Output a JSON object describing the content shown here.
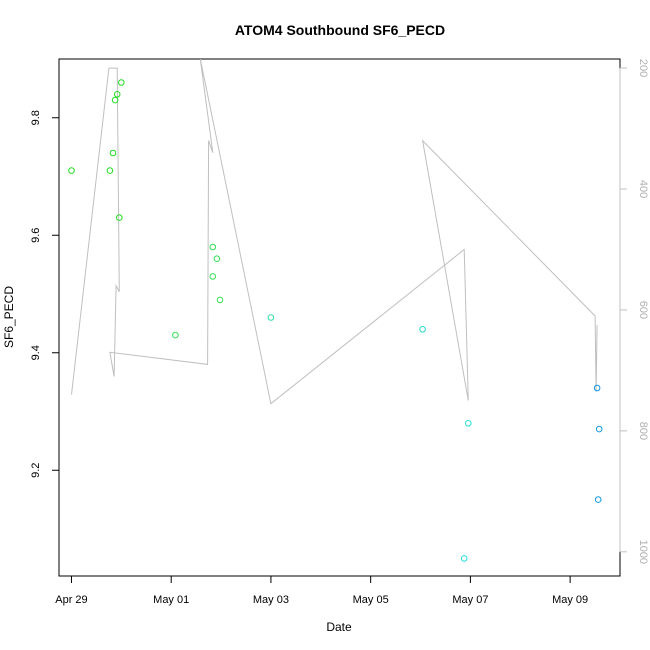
{
  "chart_data": {
    "type": "scatter",
    "title": "ATOM4 Southbound SF6_PECD",
    "xlabel": "Date",
    "ylabel": "SF6_PECD",
    "xlim": [
      "2016-04-28T18:00",
      "2016-05-10T00:00"
    ],
    "ylim": [
      9.02,
      9.9
    ],
    "x_ticks": [
      {
        "value": "2016-04-29T00:00",
        "label": "Apr 29"
      },
      {
        "value": "2016-05-01T00:00",
        "label": "May 01"
      },
      {
        "value": "2016-05-03T00:00",
        "label": "May 03"
      },
      {
        "value": "2016-05-05T00:00",
        "label": "May 05"
      },
      {
        "value": "2016-05-07T00:00",
        "label": "May 07"
      },
      {
        "value": "2016-05-09T00:00",
        "label": "May 09"
      }
    ],
    "y_ticks": [
      {
        "value": 9.2,
        "label": "9.2"
      },
      {
        "value": 9.4,
        "label": "9.4"
      },
      {
        "value": 9.6,
        "label": "9.6"
      },
      {
        "value": 9.8,
        "label": "9.8"
      }
    ],
    "y2": {
      "lim": [
        185,
        1040
      ],
      "reversed": true,
      "color": "#c0c0c0",
      "ticks": [
        {
          "value": 200,
          "label": "200"
        },
        {
          "value": 400,
          "label": "400"
        },
        {
          "value": 600,
          "label": "600"
        },
        {
          "value": 800,
          "label": "800"
        },
        {
          "value": 1000,
          "label": "1000"
        }
      ]
    },
    "grid": false,
    "points": [
      {
        "x": "2016-04-29T00:00",
        "y": 9.71,
        "color": "#22dd22"
      },
      {
        "x": "2016-04-29T18:30",
        "y": 9.71,
        "color": "#22dd22"
      },
      {
        "x": "2016-04-29T20:00",
        "y": 9.74,
        "color": "#22dd22"
      },
      {
        "x": "2016-04-29T21:00",
        "y": 9.83,
        "color": "#22dd22"
      },
      {
        "x": "2016-04-29T22:00",
        "y": 9.84,
        "color": "#22dd22"
      },
      {
        "x": "2016-04-29T23:00",
        "y": 9.63,
        "color": "#22dd22"
      },
      {
        "x": "2016-04-30T00:00",
        "y": 9.86,
        "color": "#22dd22"
      },
      {
        "x": "2016-05-01T02:00",
        "y": 9.43,
        "color": "#33dd55"
      },
      {
        "x": "2016-05-01T20:00",
        "y": 9.58,
        "color": "#33dd55"
      },
      {
        "x": "2016-05-01T20:00",
        "y": 9.53,
        "color": "#33dd55"
      },
      {
        "x": "2016-05-01T22:00",
        "y": 9.56,
        "color": "#33dd55"
      },
      {
        "x": "2016-05-01T23:30",
        "y": 9.49,
        "color": "#33dd55"
      },
      {
        "x": "2016-05-03T00:00",
        "y": 9.46,
        "color": "#33ddaa"
      },
      {
        "x": "2016-05-06T01:00",
        "y": 9.44,
        "color": "#22ddcc"
      },
      {
        "x": "2016-05-06T21:00",
        "y": 9.05,
        "color": "#22dddd"
      },
      {
        "x": "2016-05-06T23:00",
        "y": 9.28,
        "color": "#22dddd"
      },
      {
        "x": "2016-05-09T13:00",
        "y": 9.34,
        "color": "#1199dd"
      },
      {
        "x": "2016-05-09T13:30",
        "y": 9.15,
        "color": "#1199dd"
      },
      {
        "x": "2016-05-09T14:00",
        "y": 9.27,
        "color": "#1199dd"
      }
    ],
    "line_series": {
      "axis": "y2",
      "color": "#bfbfbf",
      "points": [
        {
          "x": "2016-04-29T00:00",
          "y2": 740
        },
        {
          "x": "2016-04-29T18:00",
          "y2": 200
        },
        {
          "x": "2016-04-29T22:00",
          "y2": 200
        },
        {
          "x": "2016-04-29T23:00",
          "y2": 570
        },
        {
          "x": "2016-04-29T21:30",
          "y2": 560
        },
        {
          "x": "2016-04-29T20:30",
          "y2": 710
        },
        {
          "x": "2016-04-29T18:30",
          "y2": 670
        },
        {
          "x": "2016-05-01T17:30",
          "y2": 690
        },
        {
          "x": "2016-05-01T18:00",
          "y2": 320
        },
        {
          "x": "2016-05-01T20:00",
          "y2": 340
        },
        {
          "x": "2016-05-01T14:00",
          "y2": 185
        },
        {
          "x": "2016-05-03T00:00",
          "y2": 755
        },
        {
          "x": "2016-05-06T21:00",
          "y2": 500
        },
        {
          "x": "2016-05-06T23:00",
          "y2": 750
        },
        {
          "x": "2016-05-06T01:00",
          "y2": 320
        },
        {
          "x": "2016-05-09T12:00",
          "y2": 610
        },
        {
          "x": "2016-05-09T12:30",
          "y2": 735
        },
        {
          "x": "2016-05-09T13:00",
          "y2": 625
        }
      ]
    }
  }
}
